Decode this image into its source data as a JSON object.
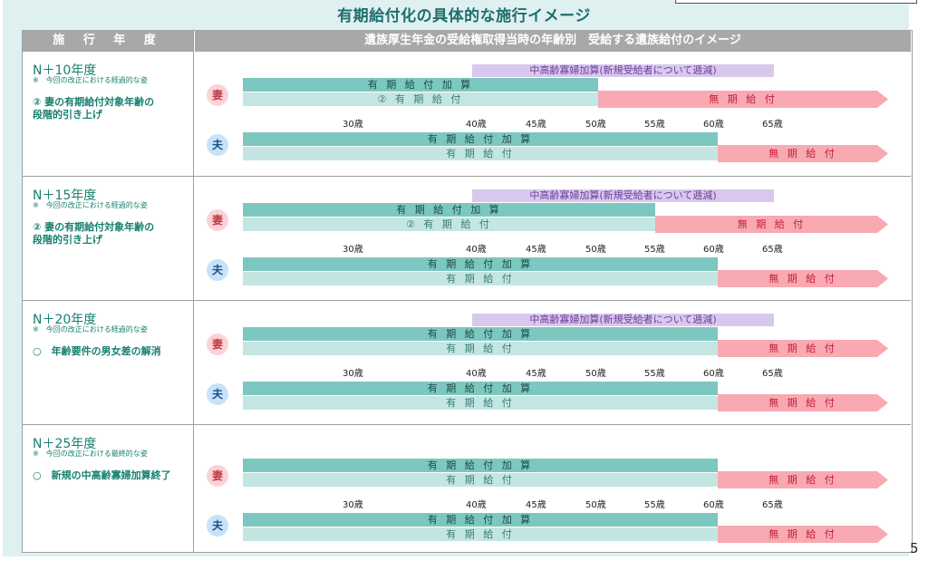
{
  "title": "有期給付化の具体的な施行イメージ",
  "header": {
    "col1": "施 行 年 度",
    "col2": "遺族厚生年金の受給権取得当時の年齢別　受給する遺族給付のイメージ"
  },
  "labels": {
    "wife": "妻",
    "husband": "夫",
    "kasan": "有 期 給 付 加 算",
    "kyufu": "有 期 給 付",
    "kyufu2": "② 有 期 給 付",
    "muki": "無 期 給 付",
    "chukorei": "中高齢寡婦加算(新規受給者について逓減)"
  },
  "ages": [
    "30歳",
    "40歳",
    "45歳",
    "50歳",
    "55歳",
    "60歳",
    "65歳"
  ],
  "sections": [
    {
      "year": "N＋10年度",
      "note": "※　今回の改正における経過的な姿",
      "desc": "② 妻の有期給付対象年齢の\n段階的引き上げ"
    },
    {
      "year": "N＋15年度",
      "note": "※　今回の改正における経過的な姿",
      "desc": "② 妻の有期給付対象年齢の\n段階的引き上げ"
    },
    {
      "year": "N＋20年度",
      "note": "※　今回の改正における経過的な姿",
      "desc": "○　年齢要件の男女差の解消"
    },
    {
      "year": "N＋25年度",
      "note": "※　今回の改正における最終的な姿",
      "desc": "○　新規の中高齢寡婦加算終了"
    }
  ],
  "page_number": "5"
}
